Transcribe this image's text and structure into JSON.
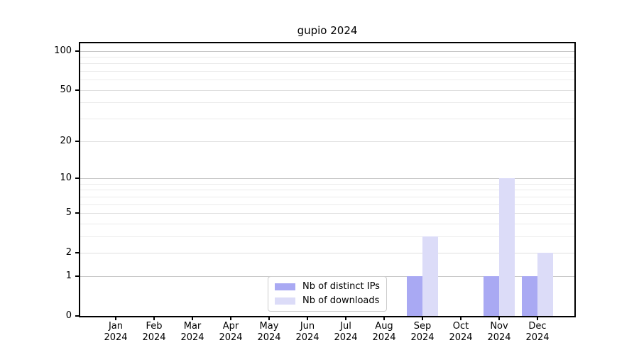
{
  "figure": {
    "title": "gupio 2024"
  },
  "chart_data": {
    "type": "bar",
    "title": "gupio 2024",
    "categories": [
      {
        "month": "Jan",
        "year": "2024"
      },
      {
        "month": "Feb",
        "year": "2024"
      },
      {
        "month": "Mar",
        "year": "2024"
      },
      {
        "month": "Apr",
        "year": "2024"
      },
      {
        "month": "May",
        "year": "2024"
      },
      {
        "month": "Jun",
        "year": "2024"
      },
      {
        "month": "Jul",
        "year": "2024"
      },
      {
        "month": "Aug",
        "year": "2024"
      },
      {
        "month": "Sep",
        "year": "2024"
      },
      {
        "month": "Oct",
        "year": "2024"
      },
      {
        "month": "Nov",
        "year": "2024"
      },
      {
        "month": "Dec",
        "year": "2024"
      }
    ],
    "series": [
      {
        "name": "Nb of distinct IPs",
        "color": "#a9a9f3",
        "values": [
          0,
          0,
          0,
          0,
          0,
          0,
          0,
          0,
          1,
          0,
          1,
          1
        ]
      },
      {
        "name": "Nb of downloads",
        "color": "#dcdcf8",
        "values": [
          0,
          0,
          0,
          0,
          0,
          0,
          0,
          0,
          3,
          0,
          10,
          2
        ]
      }
    ],
    "y_axis": {
      "scale": "log1p",
      "ticks": [
        0,
        1,
        2,
        5,
        10,
        20,
        50,
        100
      ],
      "emphasized_gridlines": [
        1,
        10,
        100
      ],
      "minor_gridlines": [
        3,
        4,
        6,
        7,
        8,
        9,
        30,
        40,
        60,
        70,
        80,
        90
      ],
      "range": [
        0,
        113
      ]
    },
    "x_axis": {
      "label": "",
      "tick_count": 12
    },
    "grid": true,
    "legend_position": "lower center inside"
  },
  "colors": {
    "grid_major": "#c6c6c6",
    "grid_mid": "#dfdfdf",
    "grid_minor": "#ebebeb",
    "axis": "#000000",
    "legend_border": "#cccccc"
  }
}
